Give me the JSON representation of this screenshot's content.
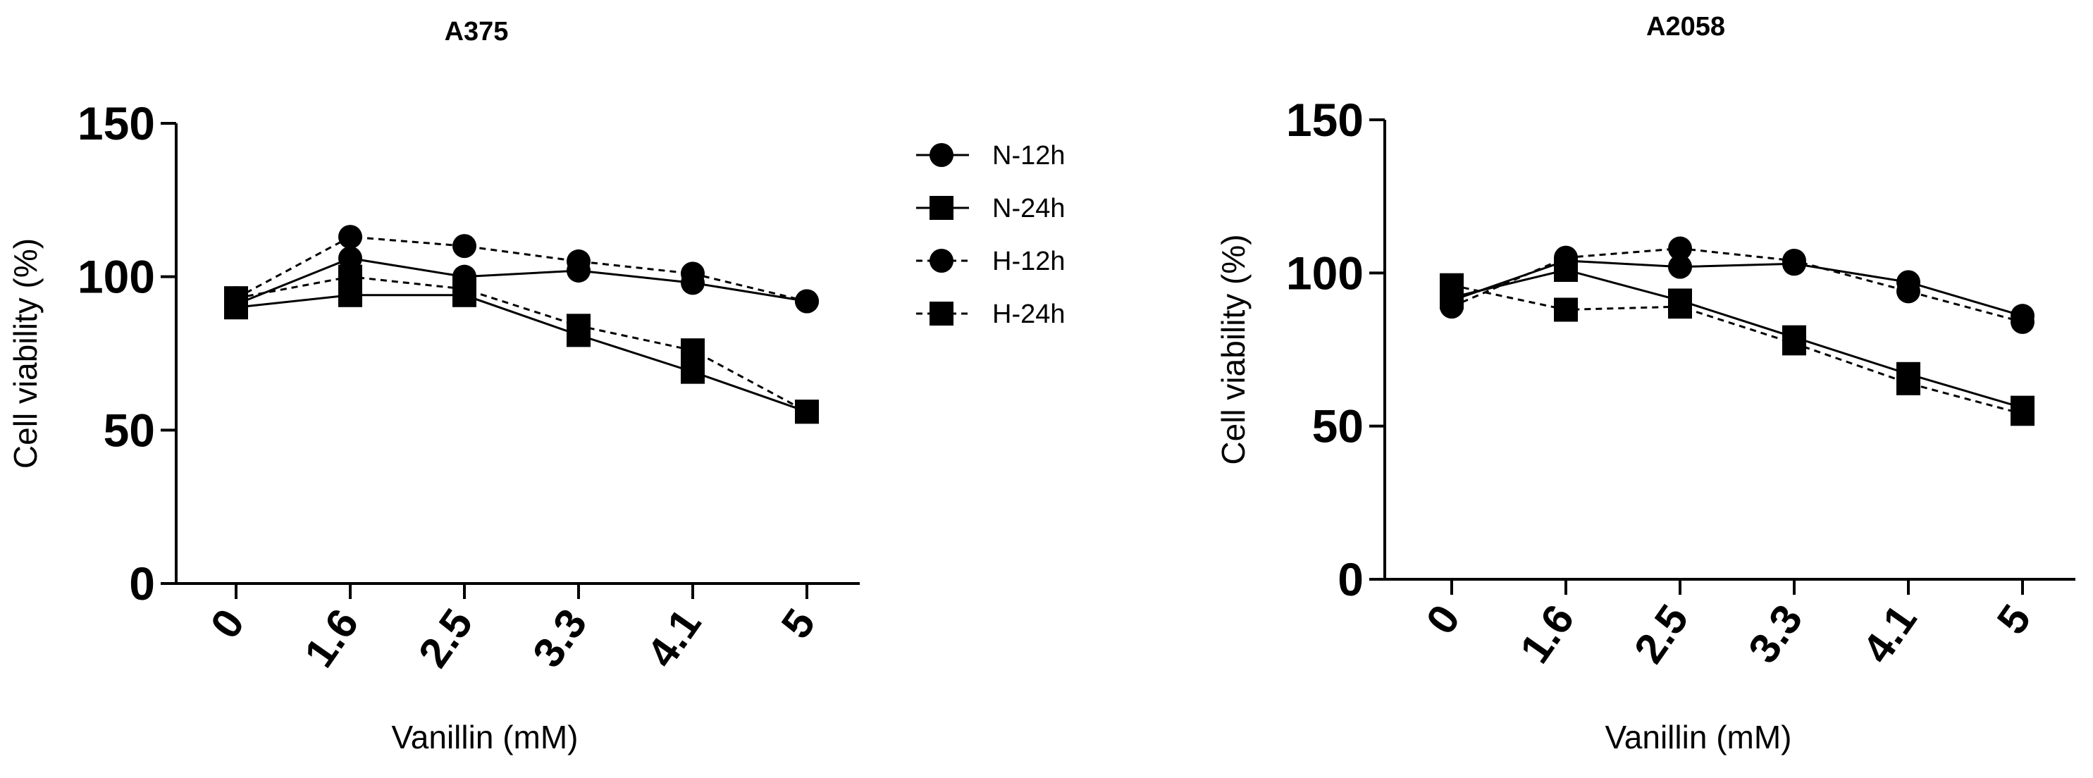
{
  "legend": {
    "entries": [
      {
        "label": "N-12h",
        "marker": "circle",
        "dash": "solid"
      },
      {
        "label": "N-24h",
        "marker": "square",
        "dash": "solid"
      },
      {
        "label": "H-12h",
        "marker": "circle",
        "dash": "dashed"
      },
      {
        "label": "H-24h",
        "marker": "square",
        "dash": "dashed"
      }
    ]
  },
  "chart_data": [
    {
      "type": "line",
      "title": "A375",
      "xlabel": "Vanillin (mM)",
      "ylabel": "Cell viability (%)",
      "categories": [
        "0",
        "1.6",
        "2.5",
        "3.3",
        "4.1",
        "5"
      ],
      "ylim": [
        0,
        150
      ],
      "yticks": [
        "0",
        "50",
        "100",
        "150"
      ],
      "grid": false,
      "series": [
        {
          "name": "N-12h",
          "values": [
            91,
            106,
            100,
            102,
            98,
            92
          ]
        },
        {
          "name": "N-24h",
          "values": [
            90,
            94,
            94,
            81,
            69,
            56
          ]
        },
        {
          "name": "H-12h",
          "values": [
            93,
            113,
            110,
            105,
            101,
            92
          ]
        },
        {
          "name": "H-24h",
          "values": [
            93,
            100,
            96,
            84,
            76,
            56
          ]
        }
      ]
    },
    {
      "type": "line",
      "title": "A2058",
      "xlabel": "Vanillin (mM)",
      "ylabel": "Cell viability (%)",
      "categories": [
        "0",
        "1.6",
        "2.5",
        "3.3",
        "4.1",
        "5"
      ],
      "ylim": [
        0,
        150
      ],
      "yticks": [
        "0",
        "50",
        "100",
        "150"
      ],
      "grid": false,
      "series": [
        {
          "name": "N-12h",
          "values": [
            91,
            104,
            102,
            103,
            97,
            86
          ]
        },
        {
          "name": "N-24h",
          "values": [
            92,
            101,
            91,
            79,
            67,
            56
          ]
        },
        {
          "name": "H-12h",
          "values": [
            89,
            105,
            108,
            104,
            94,
            84
          ]
        },
        {
          "name": "H-24h",
          "values": [
            96,
            88,
            89,
            77,
            64,
            54
          ]
        }
      ]
    }
  ]
}
